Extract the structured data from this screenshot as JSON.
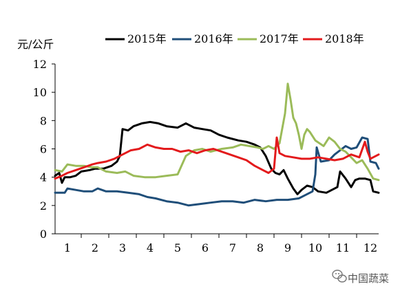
{
  "chart_data": {
    "type": "line",
    "ylabel": "元/公斤",
    "xlim": [
      0.55,
      12.3
    ],
    "ylim": [
      0,
      12
    ],
    "yticks": [
      0,
      2,
      4,
      6,
      8,
      10,
      12
    ],
    "xticks": [
      1,
      2,
      3,
      4,
      5,
      6,
      7,
      8,
      9,
      10,
      11,
      12
    ],
    "grid": false,
    "legend_position": "top",
    "series": [
      {
        "name": "2015年",
        "color": "#000000",
        "points": [
          [
            0.55,
            4.1
          ],
          [
            0.7,
            4.3
          ],
          [
            0.8,
            3.6
          ],
          [
            0.9,
            4.0
          ],
          [
            1.1,
            4.0
          ],
          [
            1.3,
            4.1
          ],
          [
            1.5,
            4.4
          ],
          [
            1.8,
            4.5
          ],
          [
            2.0,
            4.6
          ],
          [
            2.3,
            4.6
          ],
          [
            2.6,
            4.8
          ],
          [
            2.8,
            5.1
          ],
          [
            2.9,
            5.5
          ],
          [
            3.0,
            7.4
          ],
          [
            3.2,
            7.3
          ],
          [
            3.4,
            7.6
          ],
          [
            3.7,
            7.8
          ],
          [
            4.0,
            7.9
          ],
          [
            4.3,
            7.8
          ],
          [
            4.6,
            7.6
          ],
          [
            5.0,
            7.5
          ],
          [
            5.3,
            7.8
          ],
          [
            5.6,
            7.5
          ],
          [
            5.9,
            7.4
          ],
          [
            6.2,
            7.3
          ],
          [
            6.5,
            7.0
          ],
          [
            6.8,
            6.8
          ],
          [
            7.2,
            6.6
          ],
          [
            7.5,
            6.5
          ],
          [
            7.8,
            6.3
          ],
          [
            8.0,
            6.1
          ],
          [
            8.2,
            5.5
          ],
          [
            8.4,
            4.6
          ],
          [
            8.55,
            4.3
          ],
          [
            8.7,
            4.2
          ],
          [
            8.85,
            4.5
          ],
          [
            9.0,
            3.9
          ],
          [
            9.2,
            3.2
          ],
          [
            9.35,
            2.8
          ],
          [
            9.5,
            3.1
          ],
          [
            9.7,
            3.4
          ],
          [
            9.9,
            3.3
          ],
          [
            10.1,
            3.0
          ],
          [
            10.4,
            2.9
          ],
          [
            10.6,
            3.1
          ],
          [
            10.8,
            3.3
          ],
          [
            10.9,
            4.4
          ],
          [
            11.1,
            3.9
          ],
          [
            11.3,
            3.3
          ],
          [
            11.45,
            3.8
          ],
          [
            11.6,
            3.9
          ],
          [
            11.8,
            3.9
          ],
          [
            12.0,
            3.8
          ],
          [
            12.1,
            3.0
          ],
          [
            12.3,
            2.9
          ]
        ]
      },
      {
        "name": "2016年",
        "color": "#1f4e79",
        "points": [
          [
            0.55,
            2.9
          ],
          [
            0.9,
            2.9
          ],
          [
            1.0,
            3.2
          ],
          [
            1.3,
            3.1
          ],
          [
            1.6,
            3.0
          ],
          [
            1.9,
            3.0
          ],
          [
            2.1,
            3.2
          ],
          [
            2.4,
            3.0
          ],
          [
            2.8,
            3.0
          ],
          [
            3.2,
            2.9
          ],
          [
            3.6,
            2.8
          ],
          [
            3.9,
            2.6
          ],
          [
            4.2,
            2.5
          ],
          [
            4.6,
            2.3
          ],
          [
            5.0,
            2.2
          ],
          [
            5.4,
            2.0
          ],
          [
            5.8,
            2.1
          ],
          [
            6.2,
            2.2
          ],
          [
            6.6,
            2.3
          ],
          [
            7.0,
            2.3
          ],
          [
            7.4,
            2.2
          ],
          [
            7.8,
            2.4
          ],
          [
            8.2,
            2.3
          ],
          [
            8.6,
            2.4
          ],
          [
            9.0,
            2.4
          ],
          [
            9.4,
            2.5
          ],
          [
            9.6,
            2.7
          ],
          [
            9.9,
            3.0
          ],
          [
            10.0,
            4.2
          ],
          [
            10.05,
            6.1
          ],
          [
            10.2,
            5.1
          ],
          [
            10.5,
            5.2
          ],
          [
            10.7,
            5.6
          ],
          [
            10.9,
            5.9
          ],
          [
            11.1,
            6.2
          ],
          [
            11.3,
            6.0
          ],
          [
            11.5,
            6.1
          ],
          [
            11.7,
            6.8
          ],
          [
            11.9,
            6.7
          ],
          [
            12.0,
            5.1
          ],
          [
            12.2,
            5.0
          ],
          [
            12.3,
            4.6
          ]
        ]
      },
      {
        "name": "2017年",
        "color": "#9bbb59",
        "points": [
          [
            0.55,
            4.5
          ],
          [
            0.8,
            4.4
          ],
          [
            1.0,
            4.9
          ],
          [
            1.3,
            4.8
          ],
          [
            1.6,
            4.8
          ],
          [
            1.9,
            4.7
          ],
          [
            2.1,
            4.7
          ],
          [
            2.4,
            4.4
          ],
          [
            2.8,
            4.3
          ],
          [
            3.1,
            4.4
          ],
          [
            3.4,
            4.1
          ],
          [
            3.8,
            4.0
          ],
          [
            4.2,
            4.0
          ],
          [
            4.6,
            4.1
          ],
          [
            5.0,
            4.2
          ],
          [
            5.3,
            5.5
          ],
          [
            5.6,
            5.9
          ],
          [
            5.9,
            6.0
          ],
          [
            6.2,
            5.8
          ],
          [
            6.6,
            6.0
          ],
          [
            7.0,
            6.1
          ],
          [
            7.3,
            6.3
          ],
          [
            7.6,
            6.2
          ],
          [
            7.9,
            6.1
          ],
          [
            8.1,
            6.0
          ],
          [
            8.3,
            6.2
          ],
          [
            8.5,
            6.0
          ],
          [
            8.7,
            6.4
          ],
          [
            8.9,
            8.5
          ],
          [
            9.0,
            10.6
          ],
          [
            9.1,
            9.5
          ],
          [
            9.2,
            8.2
          ],
          [
            9.3,
            7.8
          ],
          [
            9.4,
            7.0
          ],
          [
            9.5,
            6.0
          ],
          [
            9.6,
            7.0
          ],
          [
            9.7,
            7.4
          ],
          [
            9.8,
            7.2
          ],
          [
            10.0,
            6.6
          ],
          [
            10.3,
            6.2
          ],
          [
            10.5,
            6.8
          ],
          [
            10.7,
            6.5
          ],
          [
            10.9,
            6.0
          ],
          [
            11.1,
            5.8
          ],
          [
            11.3,
            5.4
          ],
          [
            11.5,
            5.0
          ],
          [
            11.7,
            5.2
          ],
          [
            11.9,
            4.6
          ],
          [
            12.1,
            3.9
          ],
          [
            12.3,
            3.8
          ]
        ]
      },
      {
        "name": "2018年",
        "color": "#e31a1c",
        "points": [
          [
            0.55,
            3.9
          ],
          [
            0.8,
            4.1
          ],
          [
            1.0,
            4.3
          ],
          [
            1.3,
            4.5
          ],
          [
            1.6,
            4.7
          ],
          [
            1.9,
            4.9
          ],
          [
            2.1,
            5.0
          ],
          [
            2.4,
            5.1
          ],
          [
            2.7,
            5.3
          ],
          [
            3.0,
            5.6
          ],
          [
            3.3,
            5.9
          ],
          [
            3.6,
            6.0
          ],
          [
            3.9,
            6.3
          ],
          [
            4.2,
            6.1
          ],
          [
            4.5,
            6.0
          ],
          [
            4.8,
            6.0
          ],
          [
            5.1,
            5.8
          ],
          [
            5.4,
            5.9
          ],
          [
            5.7,
            5.7
          ],
          [
            6.0,
            5.9
          ],
          [
            6.3,
            6.0
          ],
          [
            6.6,
            5.8
          ],
          [
            6.9,
            5.6
          ],
          [
            7.2,
            5.4
          ],
          [
            7.5,
            5.2
          ],
          [
            7.8,
            4.8
          ],
          [
            8.1,
            4.5
          ],
          [
            8.3,
            4.3
          ],
          [
            8.5,
            4.6
          ],
          [
            8.6,
            6.8
          ],
          [
            8.7,
            5.7
          ],
          [
            8.9,
            5.5
          ],
          [
            9.2,
            5.4
          ],
          [
            9.5,
            5.3
          ],
          [
            9.8,
            5.3
          ],
          [
            10.1,
            5.4
          ],
          [
            10.4,
            5.3
          ],
          [
            10.7,
            5.2
          ],
          [
            11.0,
            5.3
          ],
          [
            11.3,
            5.6
          ],
          [
            11.6,
            5.4
          ],
          [
            11.8,
            6.5
          ],
          [
            11.9,
            5.8
          ],
          [
            12.0,
            5.3
          ],
          [
            12.1,
            5.4
          ],
          [
            12.3,
            5.6
          ]
        ]
      }
    ]
  },
  "watermark": "中国蔬菜"
}
